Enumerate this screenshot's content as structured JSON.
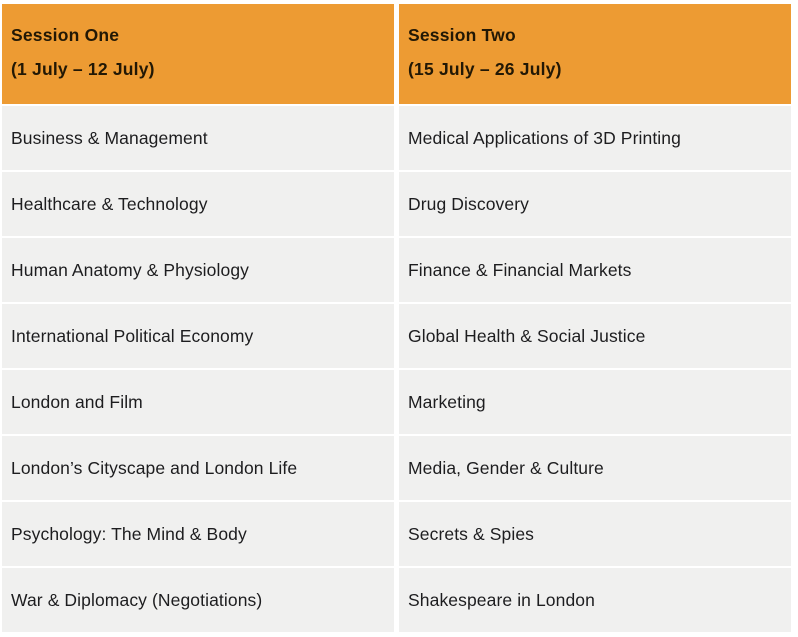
{
  "colors": {
    "header_bg": "#ED9B33",
    "header_text": "#221805",
    "row_bg": "#F0F0EF",
    "row_text": "#1D1D1F",
    "separator": "#FFFFFF"
  },
  "table": {
    "columns": [
      {
        "title": "Session One",
        "dates": "(1 July – 12 July)",
        "courses": [
          "Business & Management",
          "Healthcare & Technology",
          "Human Anatomy & Physiology",
          "International Political Economy",
          "London and Film",
          "London’s Cityscape and London Life",
          "Psychology: The Mind & Body",
          "War & Diplomacy (Negotiations)"
        ]
      },
      {
        "title": "Session Two",
        "dates": "(15 July – 26 July)",
        "courses": [
          "Medical Applications of 3D Printing",
          "Drug Discovery",
          "Finance & Financial Markets",
          "Global Health & Social Justice",
          "Marketing",
          "Media, Gender & Culture",
          "Secrets & Spies",
          "Shakespeare in London"
        ]
      }
    ]
  }
}
